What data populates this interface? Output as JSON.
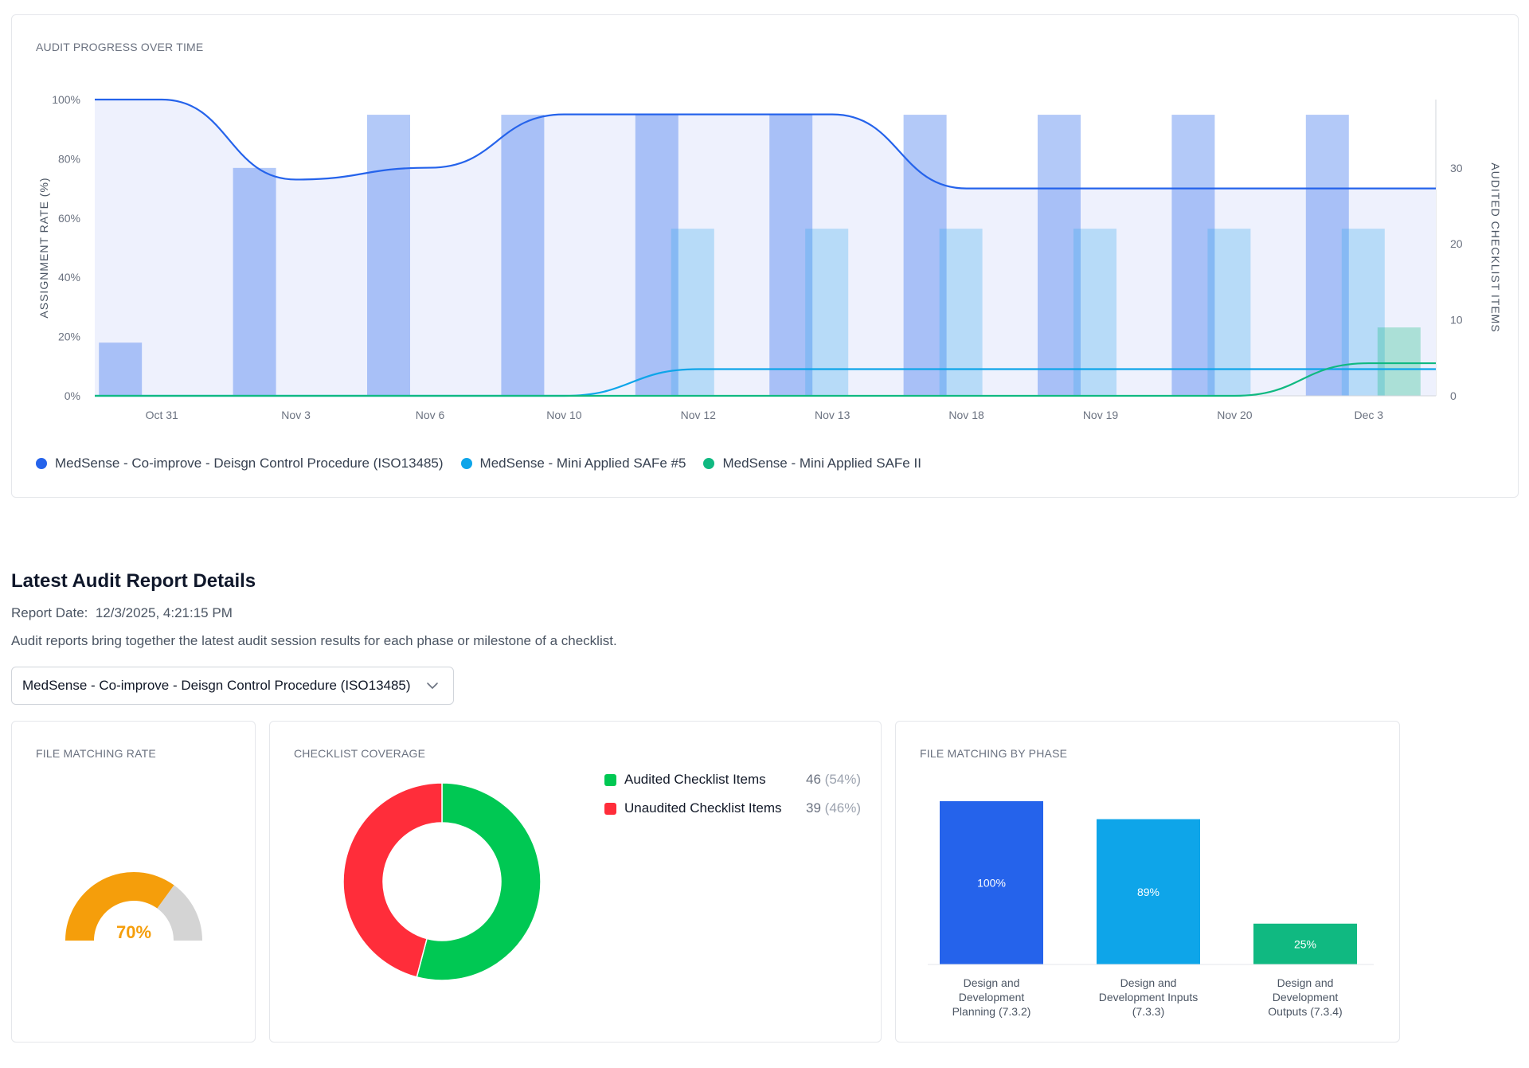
{
  "progress": {
    "title": "AUDIT PROGRESS OVER TIME",
    "legend": [
      {
        "name": "MedSense - Co-improve - Deisgn Control Procedure (ISO13485)",
        "color": "#2563eb"
      },
      {
        "name": "MedSense - Mini Applied SAFe #5",
        "color": "#0ea5e9"
      },
      {
        "name": "MedSense - Mini Applied SAFe II",
        "color": "#10b981"
      }
    ]
  },
  "details": {
    "title": "Latest Audit Report Details",
    "report_date_label": "Report Date:",
    "report_date_value": "12/3/2025, 4:21:15 PM",
    "description": "Audit reports bring together the latest audit session results for each phase or milestone of a checklist.",
    "selected_checklist": "MedSense - Co-improve - Deisgn Control Procedure (ISO13485)"
  },
  "file_matching_rate": {
    "title": "FILE MATCHING RATE",
    "value_label": "70%",
    "value": 0.7,
    "color": "#f59e0b"
  },
  "checklist_coverage": {
    "title": "CHECKLIST COVERAGE",
    "items": [
      {
        "label": "Audited Checklist Items",
        "value": "46",
        "pct": "(54%)",
        "color": "#00c853"
      },
      {
        "label": "Unaudited Checklist Items",
        "value": "39",
        "pct": "(46%)",
        "color": "#ff2d3a"
      }
    ]
  },
  "file_matching_by_phase": {
    "title": "FILE MATCHING BY PHASE"
  },
  "chart_data": [
    {
      "type": "bar",
      "title": "AUDIT PROGRESS OVER TIME",
      "ylabel": "ASSIGNMENT RATE (%)",
      "y2label": "AUDITED CHECKLIST ITEMS",
      "yticks": [
        "0%",
        "20%",
        "40%",
        "60%",
        "80%",
        "100%"
      ],
      "y2ticks": [
        "0",
        "10",
        "20",
        "30"
      ],
      "ylim": [
        0,
        100
      ],
      "y2lim": [
        0,
        39
      ],
      "categories": [
        "Oct 31",
        "Nov 3",
        "Nov 6",
        "Nov 10",
        "Nov 12",
        "Nov 13",
        "Nov 18",
        "Nov 19",
        "Nov 20",
        "Dec 3"
      ],
      "bar_series": [
        {
          "color": "#2563eb",
          "values": [
            7,
            30,
            37,
            37,
            37,
            37,
            37,
            37,
            37,
            37
          ]
        },
        {
          "color": "#38a8ee",
          "values": [
            null,
            null,
            null,
            null,
            22,
            22,
            22,
            22,
            22,
            22
          ]
        },
        {
          "color": "#10b981",
          "values": [
            null,
            null,
            null,
            null,
            null,
            null,
            null,
            null,
            null,
            9
          ]
        }
      ],
      "line_series": [
        {
          "color": "#2563eb",
          "values": [
            100,
            73,
            77,
            95,
            95,
            95,
            70,
            70,
            70,
            70
          ]
        },
        {
          "color": "#0ea5e9",
          "values": [
            0,
            0,
            0,
            0,
            9,
            9,
            9,
            9,
            9,
            9
          ]
        },
        {
          "color": "#10b981",
          "values": [
            0,
            0,
            0,
            0,
            0,
            0,
            0,
            0,
            0,
            11
          ]
        }
      ]
    },
    {
      "type": "pie",
      "title": "CHECKLIST COVERAGE",
      "labels": [
        "Audited Checklist Items",
        "Unaudited Checklist Items"
      ],
      "values": [
        46,
        39
      ],
      "colors": [
        "#00c853",
        "#ff2d3a"
      ]
    },
    {
      "type": "bar",
      "title": "FILE MATCHING BY PHASE",
      "categories": [
        [
          "Design and",
          "Development",
          "Planning (7.3.2)"
        ],
        [
          "Design and",
          "Development Inputs",
          "(7.3.3)"
        ],
        [
          "Design and",
          "Development",
          "Outputs (7.3.4)"
        ]
      ],
      "values": [
        100,
        89,
        25
      ],
      "value_labels": [
        "100%",
        "89%",
        "25%"
      ],
      "colors": [
        "#2563eb",
        "#0ea5e9",
        "#10b981"
      ],
      "ylim": [
        0,
        100
      ]
    }
  ]
}
